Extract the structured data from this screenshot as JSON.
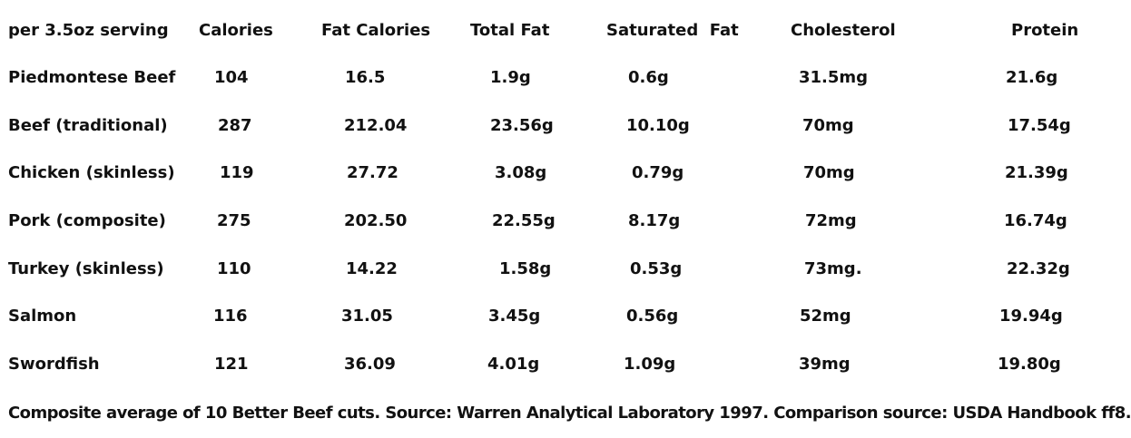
{
  "table": {
    "headers": [
      "per 3.5oz serving",
      "Calories",
      "Fat Calories",
      "Total Fat",
      "Saturated  Fat",
      "Cholesterol",
      "Protein"
    ],
    "rows": [
      [
        "Piedmontese Beef",
        "104",
        "16.5",
        "1.9g",
        "0.6g",
        "31.5mg",
        "21.6g"
      ],
      [
        "Beef (traditional)",
        "287",
        "212.04",
        "23.56g",
        "10.10g",
        "70mg",
        "17.54g"
      ],
      [
        "Chicken (skinless)",
        "119",
        "27.72",
        "3.08g",
        "0.79g",
        "70mg",
        "21.39g"
      ],
      [
        "Pork (composite)",
        "275",
        "202.50",
        "22.55g",
        "8.17g",
        "72mg",
        "16.74g"
      ],
      [
        "Turkey (skinless)",
        "110",
        "14.22",
        "1.58g",
        "0.53g",
        "73mg.",
        "22.32g"
      ],
      [
        "Salmon",
        "116",
        "31.05",
        "3.45g",
        "0.56g",
        "52mg",
        "19.94g"
      ],
      [
        "Swordfish",
        "121",
        "36.09",
        "4.01g",
        "1.09g",
        "39mg",
        "19.80g"
      ]
    ]
  },
  "footnote": "Composite average of 10 Better Beef cuts. Source: Warren Analytical Laboratory 1997. Comparison source: USDA Handbook ff8."
}
